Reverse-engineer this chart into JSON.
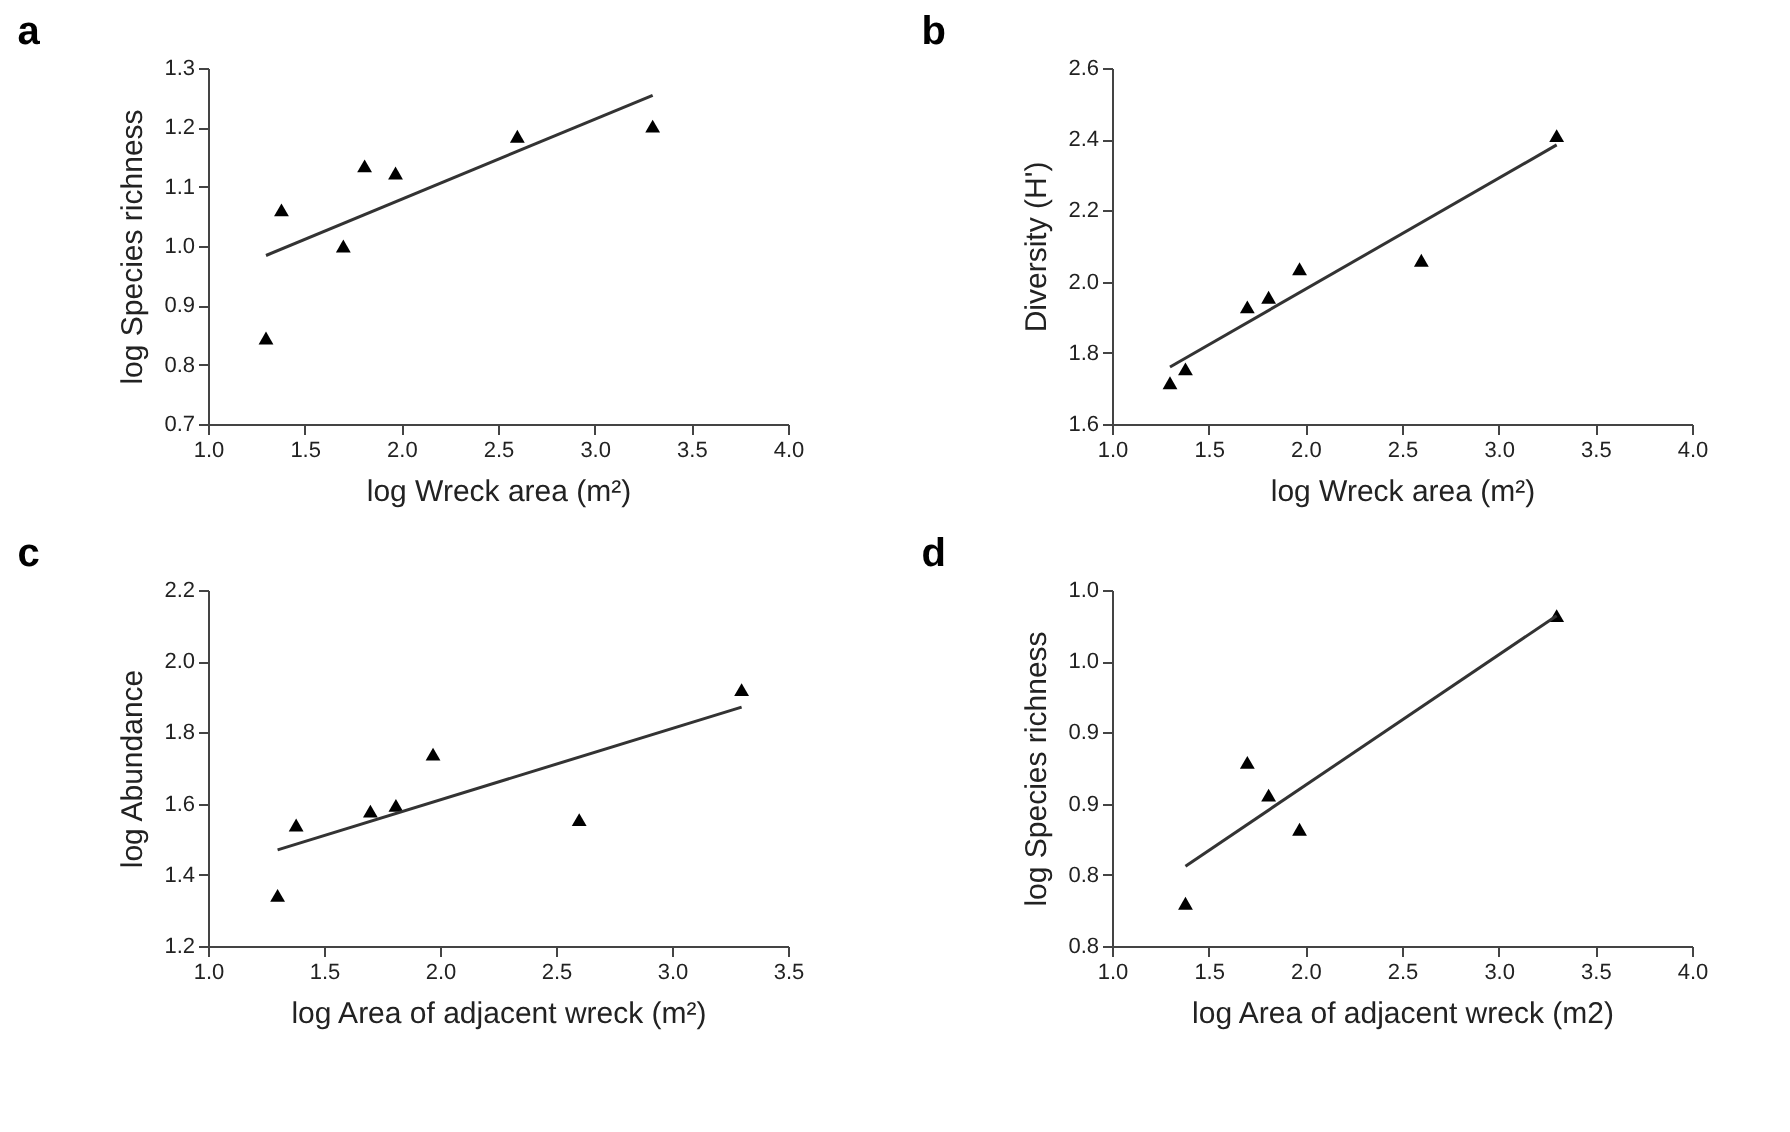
{
  "chart_data": [
    {
      "type": "scatter",
      "title": "a",
      "xlabel": "log Wreck area (m²)",
      "ylabel": "log Species richness",
      "xlim": [
        1.0,
        4.0
      ],
      "ylim": [
        0.7,
        1.3
      ],
      "xticks": [
        {
          "value": 1,
          "label": "1.0"
        },
        {
          "value": 1.5,
          "label": "1.5"
        },
        {
          "value": 2,
          "label": "2.0"
        },
        {
          "value": 2.5,
          "label": "2.5"
        },
        {
          "value": 3,
          "label": "3.0"
        },
        {
          "value": 3.5,
          "label": "3.5"
        },
        {
          "value": 4,
          "label": "4.0"
        }
      ],
      "yticks": [
        {
          "value": 0.7,
          "label": "0.7"
        },
        {
          "value": 0.8,
          "label": "0.8"
        },
        {
          "value": 0.9,
          "label": "0.9"
        },
        {
          "value": 1,
          "label": "1.0"
        },
        {
          "value": 1.1,
          "label": "1.1"
        },
        {
          "value": 1.2,
          "label": "1.2"
        },
        {
          "value": 1.3,
          "label": "1.3"
        }
      ],
      "series": [
        {
          "color": "#000000",
          "marker": "triangle",
          "x": [
            1.3,
            1.38,
            1.7,
            1.81,
            1.97,
            2.6,
            3.3
          ],
          "values": [
            0.845,
            1.061,
            1.0,
            1.135,
            1.123,
            1.185,
            1.202
          ]
        },
        {
          "type": "line",
          "color": "#333333",
          "x": [
            1.3,
            3.3
          ],
          "values": [
            0.984,
            1.254
          ]
        }
      ]
    },
    {
      "type": "scatter",
      "title": "b",
      "xlabel": "log Wreck area (m²)",
      "ylabel": "Diversity (H')",
      "xlim": [
        1.0,
        4.0
      ],
      "ylim": [
        1.6,
        2.6
      ],
      "xticks": [
        {
          "value": 1,
          "label": "1.0"
        },
        {
          "value": 1.5,
          "label": "1.5"
        },
        {
          "value": 2,
          "label": "2.0"
        },
        {
          "value": 2.5,
          "label": "2.5"
        },
        {
          "value": 3,
          "label": "3.0"
        },
        {
          "value": 3.5,
          "label": "3.5"
        },
        {
          "value": 4,
          "label": "4.0"
        }
      ],
      "yticks": [
        {
          "value": 1.6,
          "label": "1.6"
        },
        {
          "value": 1.8,
          "label": "1.8"
        },
        {
          "value": 2,
          "label": "2.0"
        },
        {
          "value": 2.2,
          "label": "2.2"
        },
        {
          "value": 2.4,
          "label": "2.4"
        },
        {
          "value": 2.6,
          "label": "2.6"
        }
      ],
      "series": [
        {
          "color": "#000000",
          "marker": "triangle",
          "x": [
            1.3,
            1.38,
            1.7,
            1.81,
            1.97,
            2.6,
            3.3
          ],
          "values": [
            1.716,
            1.755,
            1.929,
            1.956,
            2.036,
            2.06,
            2.41
          ]
        },
        {
          "type": "line",
          "color": "#333333",
          "x": [
            1.3,
            3.3
          ],
          "values": [
            1.76,
            2.384
          ]
        }
      ]
    },
    {
      "type": "scatter",
      "title": "c",
      "xlabel": "log  Area of adjacent wreck (m²)",
      "ylabel": "log Abundance",
      "xlim": [
        1.0,
        3.5
      ],
      "ylim": [
        1.2,
        2.2
      ],
      "xticks": [
        {
          "value": 1,
          "label": "1.0"
        },
        {
          "value": 1.5,
          "label": "1.5"
        },
        {
          "value": 2,
          "label": "2.0"
        },
        {
          "value": 2.5,
          "label": "2.5"
        },
        {
          "value": 3,
          "label": "3.0"
        },
        {
          "value": 3.5,
          "label": "3.5"
        }
      ],
      "yticks": [
        {
          "value": 1.2,
          "label": "1.2"
        },
        {
          "value": 1.4,
          "label": "1.4"
        },
        {
          "value": 1.6,
          "label": "1.6"
        },
        {
          "value": 1.8,
          "label": "1.8"
        },
        {
          "value": 2,
          "label": "2.0"
        },
        {
          "value": 2.2,
          "label": "2.2"
        }
      ],
      "series": [
        {
          "color": "#000000",
          "marker": "triangle",
          "x": [
            1.3,
            1.38,
            1.7,
            1.81,
            1.97,
            2.6,
            3.3
          ],
          "values": [
            1.342,
            1.54,
            1.579,
            1.595,
            1.739,
            1.555,
            1.92
          ]
        },
        {
          "type": "line",
          "color": "#333333",
          "x": [
            1.3,
            3.3
          ],
          "values": [
            1.47,
            1.871
          ]
        }
      ]
    },
    {
      "type": "scatter",
      "title": "d",
      "xlabel": "log Area of adjacent wreck (m2)",
      "ylabel": "log Species richness",
      "xlim": [
        1.0,
        4.0
      ],
      "ylim": [
        0.75,
        1.0
      ],
      "xticks": [
        {
          "value": 1,
          "label": "1.0"
        },
        {
          "value": 1.5,
          "label": "1.5"
        },
        {
          "value": 2,
          "label": "2.0"
        },
        {
          "value": 2.5,
          "label": "2.5"
        },
        {
          "value": 3,
          "label": "3.0"
        },
        {
          "value": 3.5,
          "label": "3.5"
        },
        {
          "value": 4,
          "label": "4.0"
        }
      ],
      "yticks": [
        {
          "value": 0.75,
          "label": "0.8"
        },
        {
          "value": 0.8,
          "label": "0.8"
        },
        {
          "value": 0.85,
          "label": "0.9"
        },
        {
          "value": 0.9,
          "label": "0.9"
        },
        {
          "value": 0.95,
          "label": "1.0"
        },
        {
          "value": 1.0,
          "label": "1.0"
        }
      ],
      "series": [
        {
          "color": "#000000",
          "marker": "triangle",
          "x": [
            1.38,
            1.7,
            1.81,
            1.97,
            3.3
          ],
          "values": [
            0.78,
            0.879,
            0.856,
            0.832,
            0.982
          ]
        },
        {
          "type": "line",
          "color": "#333333",
          "x": [
            1.38,
            3.3
          ],
          "values": [
            0.806,
            0.982
          ]
        }
      ]
    }
  ]
}
